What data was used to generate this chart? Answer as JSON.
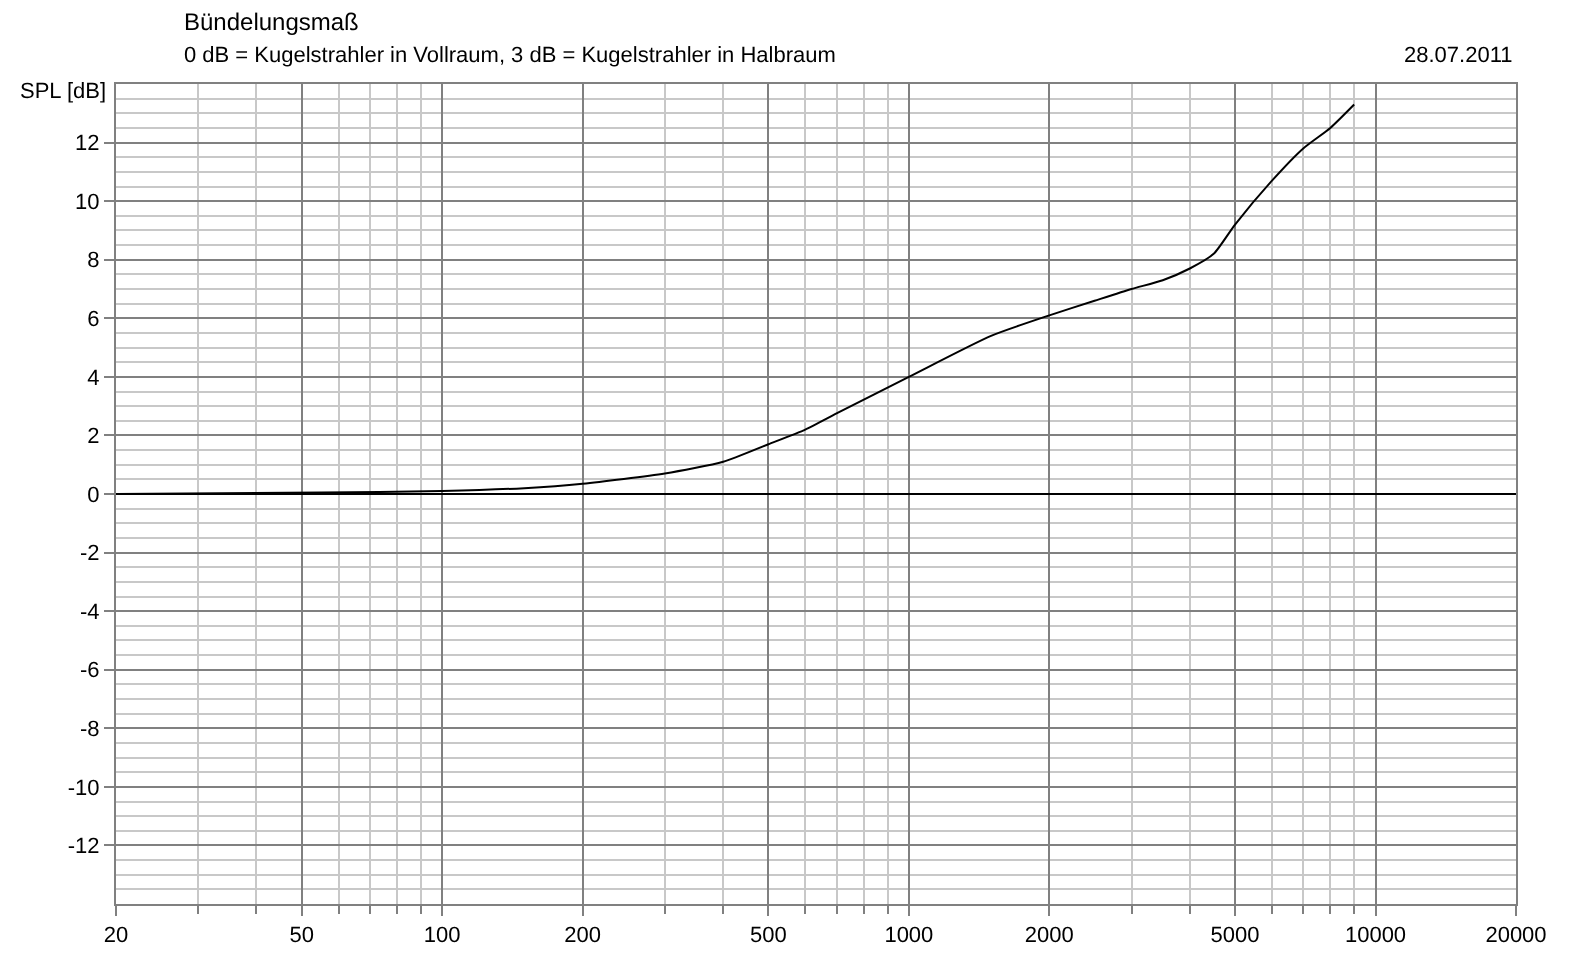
{
  "chart_data": {
    "type": "line",
    "title": "Bündelungsmaß",
    "subtitle": "0 dB = Kugelstrahler in Vollraum, 3 dB = Kugelstrahler in Halbraum",
    "ylabel": "SPL [dB]",
    "annotations": [
      "28.07.2011"
    ],
    "x": [
      20,
      55,
      100,
      150,
      200,
      300,
      400,
      500,
      600,
      700,
      1000,
      1500,
      2000,
      2500,
      3000,
      3500,
      4000,
      4500,
      5000,
      6000,
      7000,
      8000,
      9000
    ],
    "series": [
      {
        "color": "#000000",
        "values": [
          0,
          0.05,
          0.1,
          0.2,
          0.35,
          0.7,
          1.1,
          1.7,
          2.2,
          2.75,
          4.0,
          5.4,
          6.1,
          6.6,
          7.0,
          7.3,
          7.7,
          8.2,
          9.2,
          10.7,
          11.8,
          12.5,
          13.3
        ]
      }
    ],
    "log": "x",
    "xlim": [
      20,
      20000
    ],
    "xticks": [
      20,
      50,
      100,
      200,
      500,
      1000,
      2000,
      5000,
      10000,
      20000
    ],
    "ylim": [
      -14,
      14
    ],
    "yticks": [
      -12,
      -10,
      -8,
      -6,
      -4,
      -2,
      0,
      2,
      4,
      6,
      8,
      10,
      12
    ],
    "grid": true,
    "marker": "none",
    "line_style": "solid"
  }
}
